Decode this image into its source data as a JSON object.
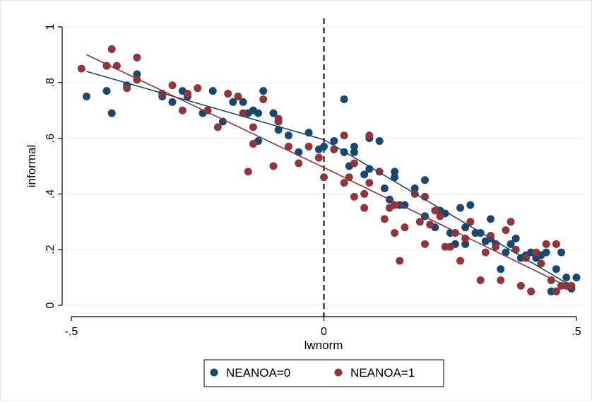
{
  "chart_data": {
    "type": "scatter",
    "xlabel": "lwnorm",
    "ylabel": "informal",
    "xlim": [
      -0.5,
      0.5
    ],
    "ylim": [
      0,
      1
    ],
    "xticks": [
      -0.5,
      0,
      0.5
    ],
    "xtick_labels": [
      "-.5",
      "0",
      ".5"
    ],
    "yticks": [
      0,
      0.2,
      0.4,
      0.6,
      0.8,
      1
    ],
    "ytick_labels": [
      "0",
      ".2",
      ".4",
      ".6",
      ".8",
      "1"
    ],
    "grid": "horizontal",
    "legend_position": "bottom",
    "cutoff_line_x": 0,
    "colors": {
      "s0": "#1a476f",
      "s1": "#90353b"
    },
    "series": [
      {
        "name": "NEANOA=0",
        "color": "#1a476f",
        "points": [
          [
            -0.47,
            0.75
          ],
          [
            -0.43,
            0.77
          ],
          [
            -0.42,
            0.69
          ],
          [
            -0.39,
            0.79
          ],
          [
            -0.37,
            0.83
          ],
          [
            -0.32,
            0.75
          ],
          [
            -0.3,
            0.73
          ],
          [
            -0.28,
            0.77
          ],
          [
            -0.27,
            0.75
          ],
          [
            -0.24,
            0.69
          ],
          [
            -0.22,
            0.77
          ],
          [
            -0.2,
            0.66
          ],
          [
            -0.18,
            0.73
          ],
          [
            -0.16,
            0.73
          ],
          [
            -0.15,
            0.69
          ],
          [
            -0.14,
            0.7
          ],
          [
            -0.13,
            0.69
          ],
          [
            -0.13,
            0.59
          ],
          [
            -0.12,
            0.77
          ],
          [
            -0.1,
            0.69
          ],
          [
            -0.09,
            0.66
          ],
          [
            -0.09,
            0.63
          ],
          [
            -0.07,
            0.61
          ],
          [
            -0.05,
            0.55
          ],
          [
            -0.03,
            0.62
          ],
          [
            -0.01,
            0.56
          ],
          [
            0.0,
            0.57
          ],
          [
            0.02,
            0.59
          ],
          [
            0.04,
            0.74
          ],
          [
            0.04,
            0.55
          ],
          [
            0.05,
            0.5
          ],
          [
            0.06,
            0.55
          ],
          [
            0.06,
            0.57
          ],
          [
            0.08,
            0.47
          ],
          [
            0.09,
            0.49
          ],
          [
            0.09,
            0.6
          ],
          [
            0.11,
            0.59
          ],
          [
            0.12,
            0.42
          ],
          [
            0.13,
            0.38
          ],
          [
            0.14,
            0.48
          ],
          [
            0.14,
            0.46
          ],
          [
            0.15,
            0.36
          ],
          [
            0.16,
            0.36
          ],
          [
            0.18,
            0.42
          ],
          [
            0.2,
            0.45
          ],
          [
            0.2,
            0.32
          ],
          [
            0.22,
            0.28
          ],
          [
            0.23,
            0.34
          ],
          [
            0.24,
            0.33
          ],
          [
            0.25,
            0.26
          ],
          [
            0.26,
            0.22
          ],
          [
            0.27,
            0.35
          ],
          [
            0.28,
            0.28
          ],
          [
            0.28,
            0.22
          ],
          [
            0.29,
            0.36
          ],
          [
            0.3,
            0.26
          ],
          [
            0.31,
            0.26
          ],
          [
            0.32,
            0.23
          ],
          [
            0.33,
            0.31
          ],
          [
            0.33,
            0.24
          ],
          [
            0.34,
            0.22
          ],
          [
            0.35,
            0.13
          ],
          [
            0.36,
            0.19
          ],
          [
            0.37,
            0.22
          ],
          [
            0.38,
            0.24
          ],
          [
            0.39,
            0.17
          ],
          [
            0.4,
            0.18
          ],
          [
            0.41,
            0.19
          ],
          [
            0.42,
            0.17
          ],
          [
            0.43,
            0.18
          ],
          [
            0.44,
            0.19
          ],
          [
            0.45,
            0.05
          ],
          [
            0.46,
            0.13
          ],
          [
            0.47,
            0.19
          ],
          [
            0.48,
            0.1
          ],
          [
            0.49,
            0.06
          ],
          [
            0.5,
            0.1
          ]
        ],
        "fit": [
          [
            -0.47,
            0.84
          ],
          [
            0.0,
            0.595
          ],
          [
            0.48,
            0.08
          ]
        ]
      },
      {
        "name": "NEANOA=1",
        "color": "#90353b",
        "points": [
          [
            -0.48,
            0.85
          ],
          [
            -0.43,
            0.86
          ],
          [
            -0.42,
            0.92
          ],
          [
            -0.41,
            0.86
          ],
          [
            -0.39,
            0.78
          ],
          [
            -0.37,
            0.89
          ],
          [
            -0.37,
            0.81
          ],
          [
            -0.32,
            0.76
          ],
          [
            -0.3,
            0.79
          ],
          [
            -0.28,
            0.7
          ],
          [
            -0.27,
            0.76
          ],
          [
            -0.25,
            0.78
          ],
          [
            -0.23,
            0.7
          ],
          [
            -0.21,
            0.64
          ],
          [
            -0.19,
            0.76
          ],
          [
            -0.17,
            0.75
          ],
          [
            -0.16,
            0.69
          ],
          [
            -0.15,
            0.48
          ],
          [
            -0.14,
            0.64
          ],
          [
            -0.14,
            0.58
          ],
          [
            -0.12,
            0.74
          ],
          [
            -0.1,
            0.5
          ],
          [
            -0.09,
            0.66
          ],
          [
            -0.09,
            0.67
          ],
          [
            -0.07,
            0.57
          ],
          [
            -0.05,
            0.51
          ],
          [
            -0.03,
            0.57
          ],
          [
            -0.01,
            0.53
          ],
          [
            0.0,
            0.46
          ],
          [
            0.02,
            0.56
          ],
          [
            0.04,
            0.61
          ],
          [
            0.04,
            0.44
          ],
          [
            0.05,
            0.46
          ],
          [
            0.06,
            0.39
          ],
          [
            0.06,
            0.51
          ],
          [
            0.08,
            0.35
          ],
          [
            0.08,
            0.4
          ],
          [
            0.09,
            0.61
          ],
          [
            0.09,
            0.44
          ],
          [
            0.11,
            0.48
          ],
          [
            0.12,
            0.31
          ],
          [
            0.13,
            0.35
          ],
          [
            0.14,
            0.36
          ],
          [
            0.14,
            0.26
          ],
          [
            0.15,
            0.16
          ],
          [
            0.16,
            0.28
          ],
          [
            0.18,
            0.4
          ],
          [
            0.19,
            0.3
          ],
          [
            0.2,
            0.22
          ],
          [
            0.2,
            0.39
          ],
          [
            0.21,
            0.29
          ],
          [
            0.22,
            0.34
          ],
          [
            0.23,
            0.32
          ],
          [
            0.24,
            0.21
          ],
          [
            0.25,
            0.21
          ],
          [
            0.26,
            0.26
          ],
          [
            0.27,
            0.16
          ],
          [
            0.28,
            0.24
          ],
          [
            0.29,
            0.3
          ],
          [
            0.31,
            0.09
          ],
          [
            0.32,
            0.19
          ],
          [
            0.33,
            0.25
          ],
          [
            0.34,
            0.21
          ],
          [
            0.35,
            0.09
          ],
          [
            0.36,
            0.27
          ],
          [
            0.37,
            0.3
          ],
          [
            0.38,
            0.2
          ],
          [
            0.39,
            0.07
          ],
          [
            0.4,
            0.17
          ],
          [
            0.41,
            0.05
          ],
          [
            0.42,
            0.19
          ],
          [
            0.43,
            0.15
          ],
          [
            0.44,
            0.22
          ],
          [
            0.45,
            0.09
          ],
          [
            0.46,
            0.05
          ],
          [
            0.46,
            0.22
          ],
          [
            0.47,
            0.07
          ],
          [
            0.48,
            0.07
          ],
          [
            0.49,
            0.07
          ]
        ],
        "fit": [
          [
            -0.47,
            0.9
          ],
          [
            0.0,
            0.495
          ],
          [
            0.48,
            0.07
          ]
        ]
      }
    ]
  }
}
